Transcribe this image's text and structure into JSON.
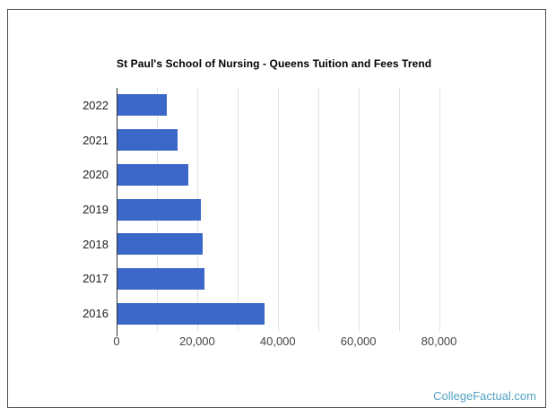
{
  "page": {
    "background": "#ffffff",
    "card_border_color": "#4d4d4d"
  },
  "chart_data": {
    "type": "bar",
    "orientation": "horizontal",
    "title": "St Paul's School of Nursing - Queens Tuition and Fees Trend",
    "categories": [
      "2022",
      "2021",
      "2020",
      "2019",
      "2018",
      "2017",
      "2016"
    ],
    "values": [
      12500,
      15200,
      17700,
      20900,
      21300,
      21700,
      36700
    ],
    "xlabel": "",
    "ylabel": "",
    "x_min": 0,
    "x_max": 85000,
    "x_major_ticks": [
      0,
      20000,
      40000,
      60000,
      80000
    ],
    "x_tick_labels": [
      "0",
      "20,000",
      "40,000",
      "60,000",
      "80,000"
    ],
    "x_gridline_step": 10000,
    "grid": true,
    "legend": "none",
    "bar_color": "#3b68c8",
    "gridline_color": "#e0e0e0",
    "axis_line_color": "#333333",
    "title_color": "#000000",
    "tick_label_color": "#444444",
    "category_label_color": "#222222"
  },
  "watermark": {
    "label": "CollegeFactual.com",
    "color": "#52a2c4"
  }
}
